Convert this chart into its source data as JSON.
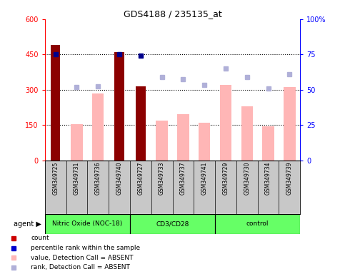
{
  "title": "GDS4188 / 235135_at",
  "categories": [
    "GSM349725",
    "GSM349731",
    "GSM349736",
    "GSM349740",
    "GSM349727",
    "GSM349733",
    "GSM349737",
    "GSM349741",
    "GSM349729",
    "GSM349730",
    "GSM349734",
    "GSM349739"
  ],
  "bar_values": [
    490,
    0,
    0,
    460,
    315,
    0,
    0,
    0,
    0,
    0,
    0,
    0
  ],
  "pink_bar_values": [
    0,
    155,
    285,
    0,
    0,
    170,
    195,
    160,
    320,
    230,
    145,
    310
  ],
  "blue_square_values": [
    450,
    0,
    0,
    450,
    445,
    0,
    0,
    0,
    0,
    0,
    0,
    0
  ],
  "light_blue_square_values": [
    0,
    310,
    315,
    0,
    0,
    355,
    345,
    320,
    390,
    355,
    305,
    365
  ],
  "ylim_left": [
    0,
    600
  ],
  "ylim_right": [
    0,
    100
  ],
  "yticks_left": [
    0,
    150,
    300,
    450,
    600
  ],
  "yticks_right": [
    0,
    25,
    50,
    75,
    100
  ],
  "groups": [
    {
      "label": "Nitric Oxide (NOC-18)",
      "start": 0,
      "end": 4
    },
    {
      "label": "CD3/CD28",
      "start": 4,
      "end": 8
    },
    {
      "label": "control",
      "start": 8,
      "end": 12
    }
  ],
  "dark_red": "#8b0000",
  "pink": "#ffb6b6",
  "dark_blue": "#00008b",
  "light_blue": "#b0b0d8",
  "group_color": "#66ff66",
  "xlabel_bg": "#c8c8c8",
  "legend_items": [
    {
      "color": "#cc0000",
      "label": "count"
    },
    {
      "color": "#0000cc",
      "label": "percentile rank within the sample"
    },
    {
      "color": "#ffb6b6",
      "label": "value, Detection Call = ABSENT"
    },
    {
      "color": "#b0b0d8",
      "label": "rank, Detection Call = ABSENT"
    }
  ]
}
